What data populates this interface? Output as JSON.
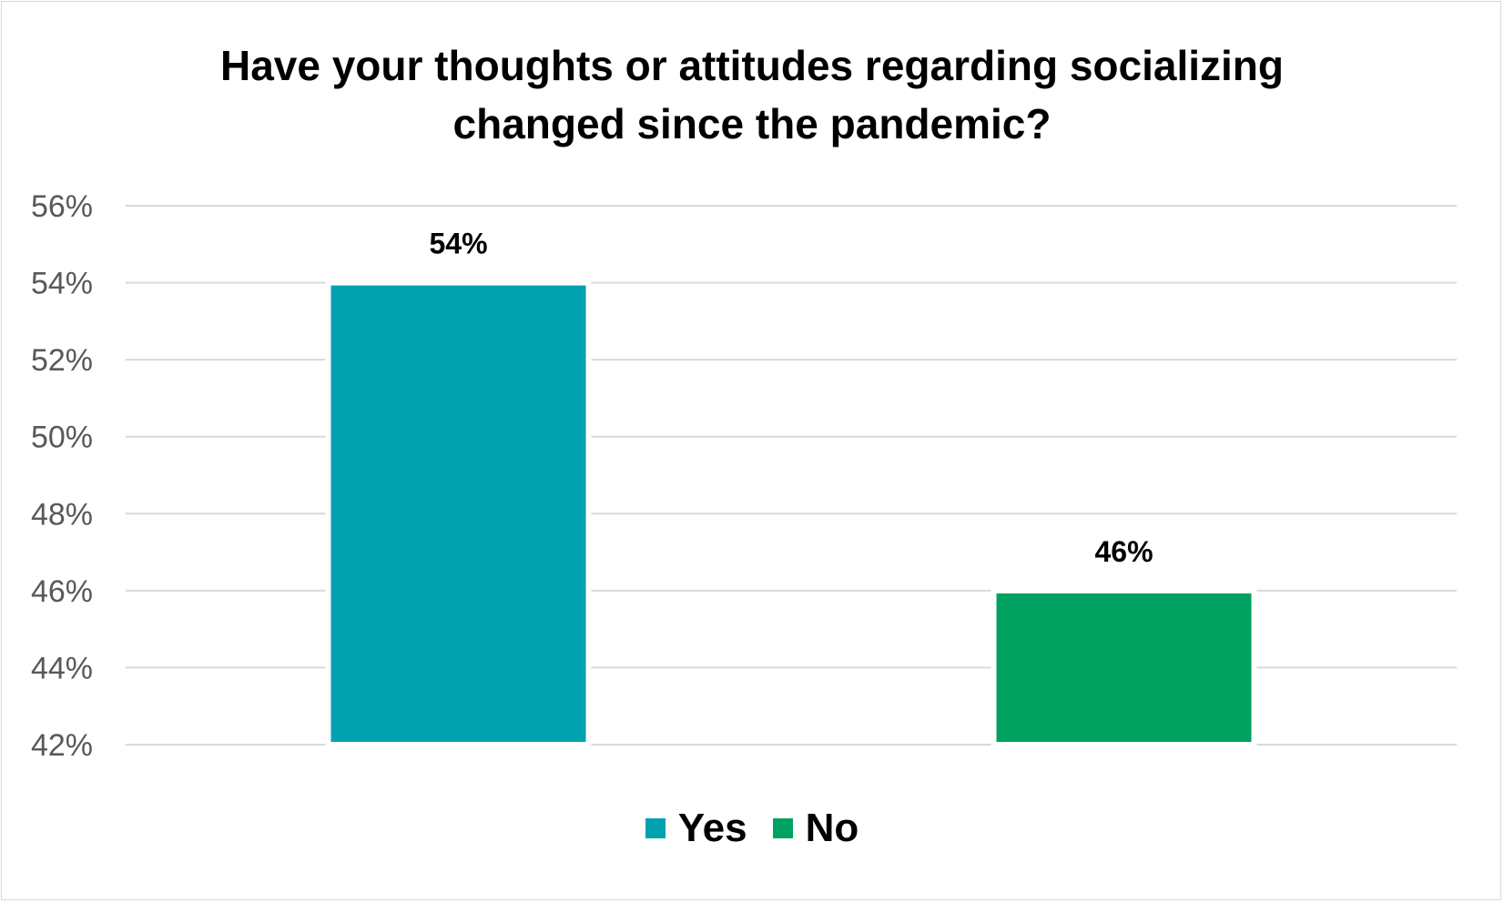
{
  "chart_data": {
    "type": "bar",
    "title": "Have your thoughts or attitudes regarding socializing changed since the pandemic?",
    "title_lines": [
      "Have your thoughts or attitudes regarding socializing",
      "changed since the pandemic?"
    ],
    "categories": [
      "Yes",
      "No"
    ],
    "values": [
      54,
      46
    ],
    "value_labels": [
      "54%",
      "46%"
    ],
    "colors": [
      "#00a2b0",
      "#00a262"
    ],
    "ylim": [
      42,
      56
    ],
    "yticks": [
      42,
      44,
      46,
      48,
      50,
      52,
      54,
      56
    ],
    "ytick_labels": [
      "42%",
      "44%",
      "46%",
      "48%",
      "50%",
      "52%",
      "54%",
      "56%"
    ],
    "xlabel": "",
    "ylabel": "",
    "grid": true,
    "legend_position": "bottom"
  }
}
